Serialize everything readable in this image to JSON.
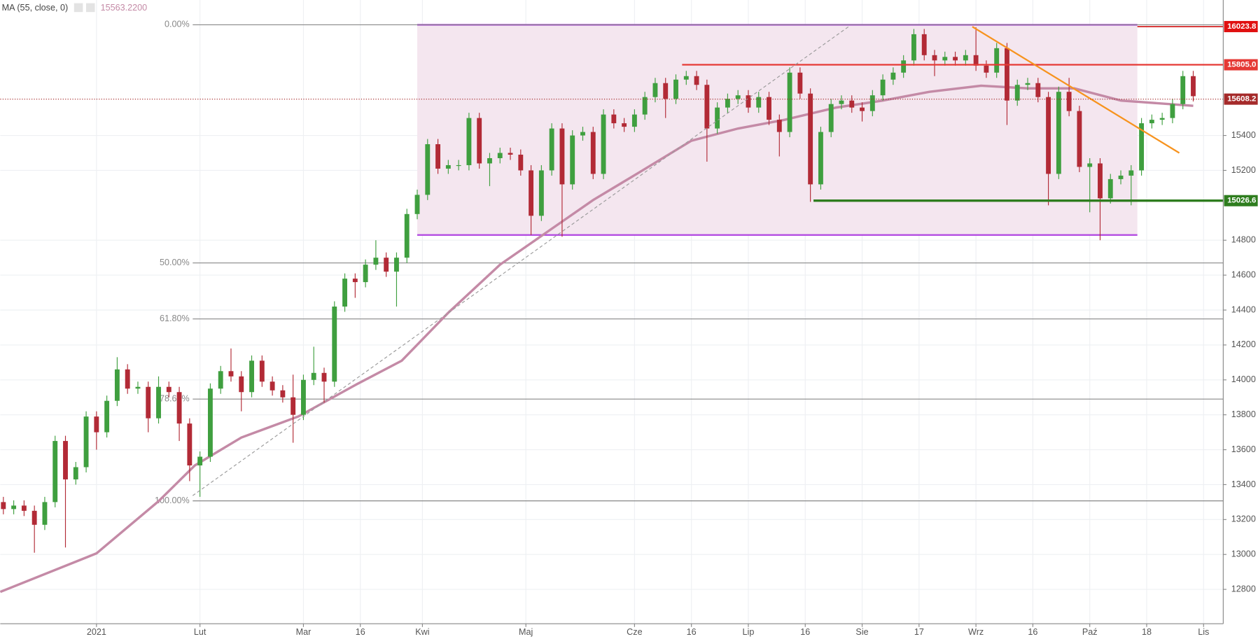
{
  "chart_data": {
    "type": "candlestick",
    "xlim": [
      -18.6,
      217.8
    ],
    "ylim": [
      12603,
      16176
    ],
    "grid": true,
    "xticks": [
      {
        "value": 0,
        "label": "2021"
      },
      {
        "value": 20,
        "label": "Lut"
      },
      {
        "value": 40,
        "label": "Mar"
      },
      {
        "value": 51,
        "label": "16"
      },
      {
        "value": 63,
        "label": "Kwi"
      },
      {
        "value": 83,
        "label": "Maj"
      },
      {
        "value": 104,
        "label": "Cze"
      },
      {
        "value": 115,
        "label": "16"
      },
      {
        "value": 126,
        "label": "Lip"
      },
      {
        "value": 137,
        "label": "16"
      },
      {
        "value": 148,
        "label": "Sie"
      },
      {
        "value": 159,
        "label": "17"
      },
      {
        "value": 170,
        "label": "Wrz"
      },
      {
        "value": 181,
        "label": "16"
      },
      {
        "value": 192,
        "label": "Paź"
      },
      {
        "value": 203,
        "label": "18"
      },
      {
        "value": 214,
        "label": "Lis"
      }
    ],
    "yticks": [
      12800,
      13000,
      13200,
      13400,
      13600,
      13800,
      14000,
      14200,
      14400,
      14600,
      14800,
      15200,
      15400
    ],
    "x": [
      -18,
      -16,
      -14,
      -12,
      -10,
      -8,
      -6,
      -4,
      -2,
      0,
      2,
      4,
      6,
      8,
      10,
      12,
      14,
      16,
      18,
      20,
      22,
      24,
      26,
      28,
      30,
      32,
      34,
      36,
      38,
      40,
      42,
      44,
      46,
      48,
      50,
      52,
      54,
      56,
      58,
      60,
      62,
      64,
      66,
      68,
      70,
      72,
      74,
      76,
      78,
      80,
      82,
      84,
      86,
      88,
      90,
      92,
      94,
      96,
      98,
      100,
      102,
      104,
      106,
      108,
      110,
      112,
      114,
      116,
      118,
      120,
      122,
      124,
      126,
      128,
      130,
      132,
      134,
      136,
      138,
      140,
      142,
      144,
      146,
      148,
      150,
      152,
      154,
      156,
      158,
      160,
      162,
      164,
      166,
      168,
      170,
      172,
      174,
      176,
      178,
      180,
      182,
      184,
      186,
      188,
      190,
      192,
      194,
      196,
      198,
      200,
      202,
      204,
      206,
      208,
      210,
      212
    ],
    "series": {
      "up_color": "#3f9f3f",
      "down_color": "#b22a36",
      "open": [
        13300,
        13260,
        13280,
        13250,
        13170,
        13300,
        13650,
        13430,
        13500,
        13790,
        13700,
        13880,
        14060,
        13950,
        13960,
        13780,
        13960,
        13930,
        13750,
        13510,
        13560,
        13950,
        14050,
        14020,
        13930,
        14110,
        13990,
        13940,
        13900,
        13800,
        14000,
        14040,
        13990,
        14420,
        14580,
        14560,
        14660,
        14700,
        14620,
        14700,
        14950,
        15060,
        15350,
        15210,
        15230,
        15230,
        15500,
        15240,
        15270,
        15300,
        15290,
        15200,
        14940,
        15200,
        15440,
        15120,
        15400,
        15420,
        15180,
        15520,
        15470,
        15450,
        15520,
        15620,
        15700,
        15610,
        15720,
        15740,
        15690,
        15440,
        15560,
        15610,
        15630,
        15560,
        15620,
        15490,
        15420,
        15760,
        15640,
        15120,
        15420,
        15580,
        15600,
        15560,
        15540,
        15630,
        15720,
        15760,
        15830,
        15980,
        15860,
        15830,
        15850,
        15830,
        15860,
        15800,
        15760,
        15900,
        15600,
        15690,
        15700,
        15620,
        15180,
        15650,
        15540,
        15220,
        15240,
        15040,
        15150,
        15170,
        15200,
        15470,
        15490,
        15500,
        15580,
        15740
      ],
      "high": [
        13330,
        13310,
        13310,
        13280,
        13330,
        13680,
        13680,
        13530,
        13820,
        13820,
        13910,
        14130,
        14090,
        13990,
        13990,
        14020,
        13990,
        13960,
        13780,
        13590,
        13980,
        14080,
        14180,
        14050,
        14140,
        14140,
        14020,
        13970,
        14030,
        14030,
        14190,
        14070,
        14450,
        14610,
        14610,
        14690,
        14800,
        14730,
        14730,
        14980,
        15090,
        15380,
        15380,
        15260,
        15260,
        15530,
        15530,
        15300,
        15330,
        15330,
        15320,
        15230,
        15230,
        15470,
        15470,
        15430,
        15450,
        15450,
        15550,
        15550,
        15500,
        15550,
        15650,
        15730,
        15730,
        15750,
        15770,
        15770,
        15720,
        15590,
        15640,
        15660,
        15660,
        15650,
        15650,
        15520,
        15790,
        15790,
        15670,
        15450,
        15610,
        15630,
        15630,
        15590,
        15660,
        15750,
        15790,
        15860,
        16010,
        16010,
        15890,
        15880,
        15880,
        15890,
        16020,
        15830,
        15930,
        15930,
        15720,
        15730,
        15730,
        15650,
        15680,
        15730,
        15570,
        15270,
        15270,
        15180,
        15200,
        15230,
        15500,
        15520,
        15530,
        15610,
        15770,
        15770
      ],
      "low": [
        13230,
        13230,
        13220,
        13010,
        13140,
        13270,
        13040,
        13400,
        13470,
        13600,
        13670,
        13850,
        13920,
        13920,
        13700,
        13750,
        13900,
        13650,
        13420,
        13330,
        13530,
        13920,
        13990,
        13820,
        13900,
        13960,
        13910,
        13870,
        13640,
        13770,
        13970,
        13870,
        13960,
        14390,
        14470,
        14530,
        14630,
        14590,
        14420,
        14670,
        14920,
        15030,
        15180,
        15180,
        15200,
        15200,
        15210,
        15110,
        15240,
        15260,
        15170,
        14830,
        14910,
        15170,
        14820,
        15090,
        15370,
        15150,
        15150,
        15440,
        15420,
        15420,
        15490,
        15590,
        15500,
        15580,
        15690,
        15660,
        15250,
        15410,
        15530,
        15580,
        15530,
        15530,
        15460,
        15280,
        15390,
        15610,
        15020,
        15090,
        15390,
        15550,
        15530,
        15480,
        15510,
        15600,
        15690,
        15730,
        15800,
        15830,
        15740,
        15800,
        15800,
        15800,
        15770,
        15730,
        15730,
        15460,
        15570,
        15660,
        15590,
        15000,
        15150,
        15510,
        15190,
        14960,
        14800,
        15010,
        15120,
        15000,
        15170,
        15440,
        15460,
        15470,
        15550,
        15595
      ],
      "close": [
        13260,
        13280,
        13250,
        13170,
        13300,
        13650,
        13430,
        13500,
        13790,
        13700,
        13880,
        14060,
        13950,
        13960,
        13780,
        13960,
        13930,
        13750,
        13510,
        13560,
        13950,
        14050,
        14020,
        13930,
        14110,
        13990,
        13940,
        13900,
        13800,
        14000,
        14040,
        13990,
        14420,
        14580,
        14560,
        14660,
        14700,
        14620,
        14700,
        14950,
        15060,
        15350,
        15210,
        15230,
        15230,
        15500,
        15240,
        15270,
        15300,
        15290,
        15200,
        14940,
        15200,
        15440,
        15120,
        15400,
        15420,
        15180,
        15520,
        15470,
        15450,
        15520,
        15620,
        15700,
        15610,
        15720,
        15740,
        15690,
        15440,
        15560,
        15610,
        15630,
        15560,
        15620,
        15490,
        15420,
        15760,
        15640,
        15120,
        15420,
        15580,
        15600,
        15560,
        15540,
        15630,
        15720,
        15760,
        15830,
        15980,
        15860,
        15830,
        15850,
        15830,
        15860,
        15800,
        15760,
        15900,
        15600,
        15690,
        15700,
        15620,
        15180,
        15650,
        15540,
        15220,
        15240,
        15040,
        15150,
        15170,
        15200,
        15470,
        15490,
        15500,
        15580,
        15740,
        15625
      ]
    },
    "indicator": {
      "name": "MA (55, close, 0)",
      "color": "#c48aa6",
      "value": 15563.22,
      "value_label": "15563.2200",
      "x": [
        -18.6,
        0,
        12,
        19,
        28,
        39,
        50,
        59,
        68,
        78,
        87,
        96,
        105,
        115,
        124,
        133,
        143,
        152,
        161,
        171,
        180,
        189,
        198,
        212
      ],
      "values": [
        12786,
        13006,
        13305,
        13510,
        13670,
        13790,
        13970,
        14110,
        14385,
        14660,
        14845,
        15030,
        15190,
        15370,
        15440,
        15490,
        15560,
        15600,
        15650,
        15685,
        15670,
        15670,
        15600,
        15570
      ]
    },
    "box": {
      "x": [
        62,
        201.2
      ],
      "y": [
        14830,
        16034
      ],
      "fill": "#f4e6ef",
      "border": "#b044e0"
    },
    "fib_levels": [
      {
        "value": 16034,
        "label": "0.00%"
      },
      {
        "value": 14670,
        "label": "50.00%"
      },
      {
        "value": 14349,
        "label": "61.80%"
      },
      {
        "value": 13890,
        "label": "78.60%"
      },
      {
        "value": 13307,
        "label": "100.00%"
      }
    ],
    "fib_start": 18.6,
    "lines": [
      {
        "x": [
          113.2,
          217.8
        ],
        "y": [
          15805,
          15805
        ],
        "color": "#e53935",
        "width": 2,
        "style": "solid"
      },
      {
        "x": [
          201.2,
          217.8
        ],
        "y": [
          16023.8,
          16023.8
        ],
        "color": "#d32020",
        "width": 1.5,
        "style": "solid"
      },
      {
        "x": [
          138.6,
          217.8
        ],
        "y": [
          15026.6,
          15026.6
        ],
        "color": "#2e7d1e",
        "width": 3,
        "style": "solid"
      },
      {
        "x": [
          169.3,
          209.3
        ],
        "y": [
          16023,
          15300
        ],
        "color": "#f7931e",
        "width": 2,
        "style": "solid"
      },
      {
        "x": [
          18.6,
          145.7
        ],
        "y": [
          13337,
          16030
        ],
        "color": "#9a9a9a",
        "width": 1,
        "style": "dashed"
      }
    ],
    "price_labels": [
      {
        "value": 16023.8,
        "label": "16023.8",
        "color": "#e01010"
      },
      {
        "value": 15805,
        "label": "15805.0",
        "color": "#e53935"
      },
      {
        "value": 15608.2,
        "label": "15608.2",
        "color": "#a52a2a",
        "line": "dotted"
      },
      {
        "value": 15026.6,
        "label": "15026.6",
        "color": "#2e7d1e"
      }
    ]
  }
}
